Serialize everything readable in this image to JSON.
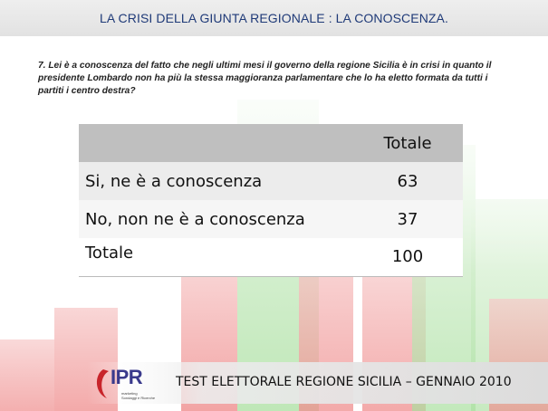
{
  "header": {
    "title": "LA CRISI DELLA GIUNTA REGIONALE : LA CONOSCENZA."
  },
  "question": {
    "text": "7. Lei è a conoscenza del fatto che negli ultimi mesi il governo della regione Sicilia è in crisi in quanto il presidente Lombardo non ha più la stessa maggioranza parlamentare che lo ha eletto formata da tutti i partiti i centro destra?"
  },
  "table": {
    "column_header": "Totale",
    "rows": [
      {
        "label": "Si, ne è a conoscenza",
        "value": "63"
      },
      {
        "label": "No, non ne è a conoscenza",
        "value": "37"
      },
      {
        "label": "Totale",
        "value": "100"
      }
    ]
  },
  "footer": {
    "logo_text": "IPR",
    "logo_subtext_1": "marketing",
    "logo_subtext_2": "Sondaggi e Ricerche",
    "text": "TEST ELETTORALE REGIONE SICILIA – GENNAIO 2010"
  },
  "colors": {
    "title": "#1f3a78",
    "background_bars_red": "#f2a5a5",
    "background_bars_green": "#b8e6b0",
    "table_header_bg": "#bfbfbf",
    "logo_red": "#c8242a",
    "logo_blue": "#3a3a8c"
  }
}
